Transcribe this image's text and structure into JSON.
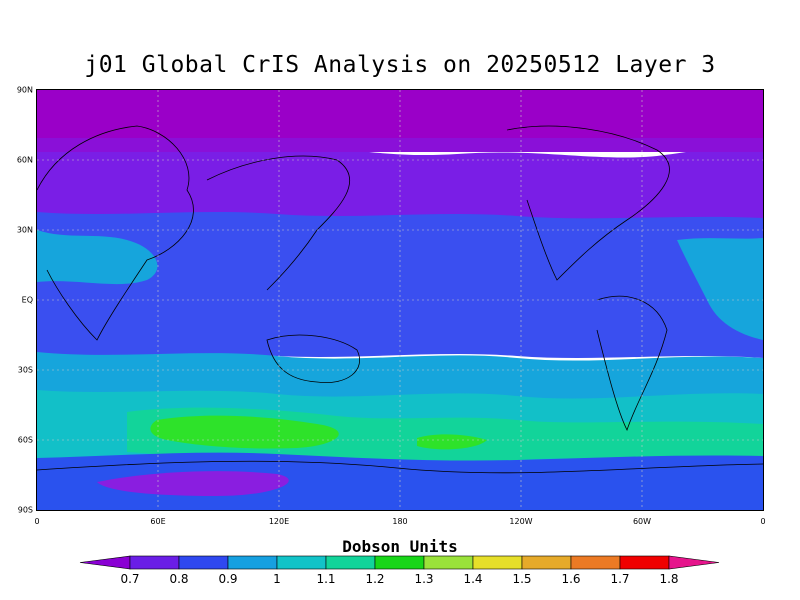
{
  "title": "j01 Global CrIS Analysis on 20250512 Layer 3",
  "map": {
    "projection": "cylindrical equidistant, lon 0 to 360",
    "grid": true,
    "lat_labels": [
      "90N",
      "60N",
      "30N",
      "EQ",
      "30S",
      "60S",
      "90S"
    ],
    "lon_labels": [
      "0",
      "60E",
      "120E",
      "180",
      "120W",
      "60W",
      "0"
    ],
    "band_colors": {
      "polar_north": "#9a00c8",
      "north_mid": "#7a1ee6",
      "tropics": "#3a4ff0",
      "subtropics_south": "#16a5dc",
      "southern_mid": "#12c0c8",
      "southern_high": "#12d49a",
      "southern_max": "#2ee22a",
      "antarctic_ring": "#2a52ee",
      "antarctic_core": "#8a1ee0"
    }
  },
  "colorbar": {
    "title": "Dobson Units",
    "labels": [
      "0.7",
      "0.8",
      "0.9",
      "1",
      "1.1",
      "1.2",
      "1.3",
      "1.4",
      "1.5",
      "1.6",
      "1.7",
      "1.8"
    ],
    "colors": [
      "#8a00d4",
      "#6a1ee6",
      "#2f48f0",
      "#16a0e0",
      "#12c3c8",
      "#12d49a",
      "#18d618",
      "#9ae23a",
      "#e6df2a",
      "#e6aa2a",
      "#ec7a24",
      "#f00000",
      "#e6148c"
    ]
  }
}
